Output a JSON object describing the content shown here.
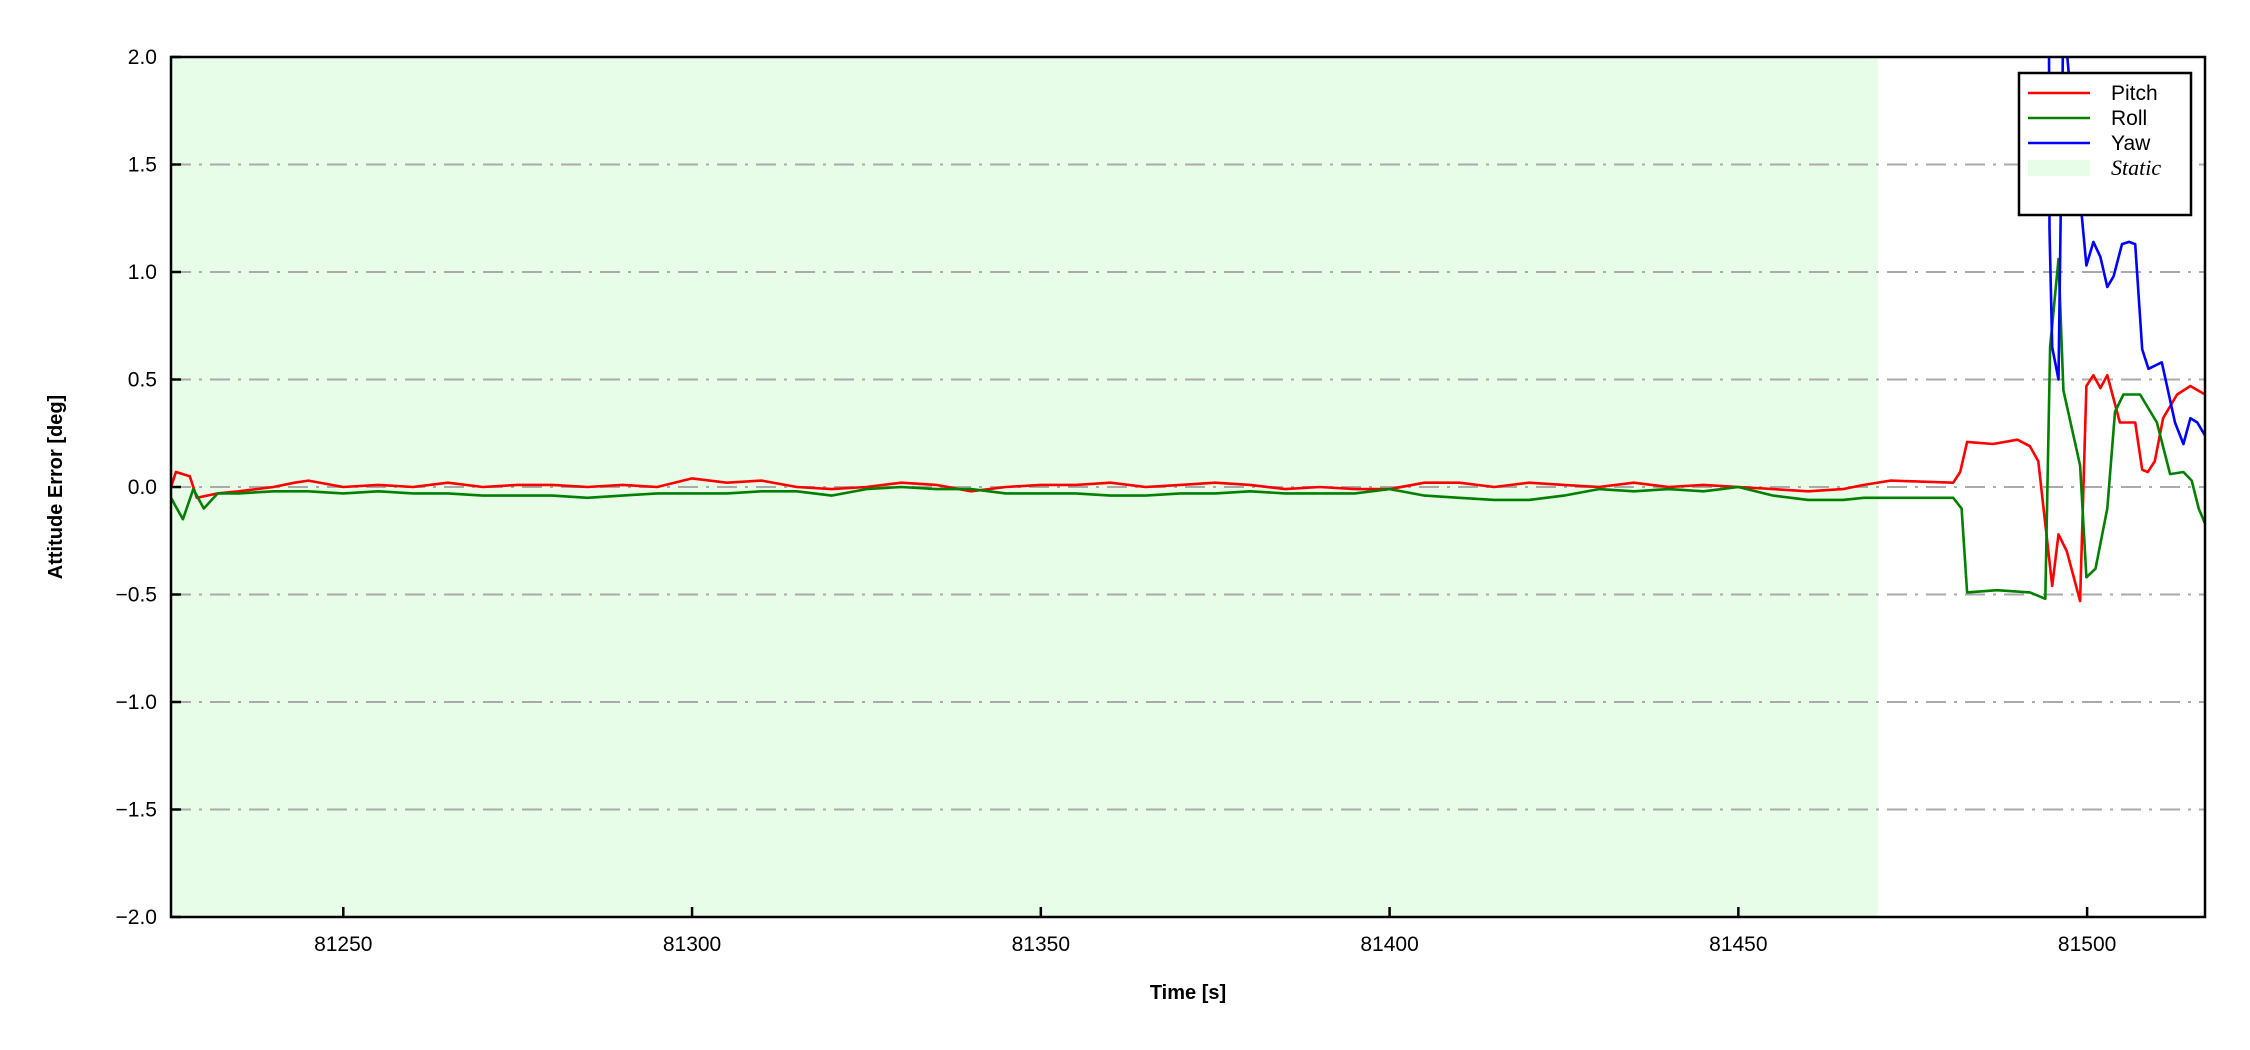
{
  "chart_data": {
    "type": "line",
    "title": "",
    "xlabel": "Time [s]",
    "ylabel": "Attitude Error [deg]",
    "xlim": [
      81225.3,
      81516.9
    ],
    "ylim": [
      -2.0,
      2.0
    ],
    "xticks": [
      81250,
      81300,
      81350,
      81400,
      81450,
      81500
    ],
    "yticks": [
      2.0,
      1.5,
      1.0,
      0.5,
      0.0,
      -0.5,
      -1.0,
      -1.5,
      -2.0
    ],
    "ytick_labels": [
      "2.0",
      "1.5",
      "1.0",
      "0.5",
      "0.0",
      "−0.5",
      "−1.0",
      "−1.5",
      "−2.0"
    ],
    "grid": "horizontal dash-dot",
    "grid_color": "#aaaaaa",
    "legend_position": "top-right",
    "shaded_regions": [
      {
        "name": "Static",
        "x_start": 81225.3,
        "x_end": 81470,
        "color": "#e8fde8"
      }
    ],
    "series": [
      {
        "name": "Pitch",
        "color": "#ff0000",
        "points": [
          [
            81225.3,
            0.0
          ],
          [
            81226,
            0.07
          ],
          [
            81228,
            0.05
          ],
          [
            81229,
            -0.05
          ],
          [
            81232,
            -0.03
          ],
          [
            81235,
            -0.02
          ],
          [
            81240,
            0.0
          ],
          [
            81243,
            0.02
          ],
          [
            81245,
            0.03
          ],
          [
            81250,
            0.0
          ],
          [
            81255,
            0.01
          ],
          [
            81260,
            0.0
          ],
          [
            81265,
            0.02
          ],
          [
            81270,
            0.0
          ],
          [
            81275,
            0.01
          ],
          [
            81280,
            0.01
          ],
          [
            81285,
            0.0
          ],
          [
            81290,
            0.01
          ],
          [
            81295,
            0.0
          ],
          [
            81300,
            0.04
          ],
          [
            81305,
            0.02
          ],
          [
            81310,
            0.03
          ],
          [
            81315,
            0.0
          ],
          [
            81320,
            -0.01
          ],
          [
            81325,
            0.0
          ],
          [
            81330,
            0.02
          ],
          [
            81335,
            0.01
          ],
          [
            81340,
            -0.02
          ],
          [
            81345,
            0.0
          ],
          [
            81350,
            0.01
          ],
          [
            81355,
            0.01
          ],
          [
            81360,
            0.02
          ],
          [
            81365,
            0.0
          ],
          [
            81370,
            0.01
          ],
          [
            81375,
            0.02
          ],
          [
            81380,
            0.01
          ],
          [
            81385,
            -0.01
          ],
          [
            81390,
            0.0
          ],
          [
            81395,
            -0.01
          ],
          [
            81400,
            -0.01
          ],
          [
            81405,
            0.02
          ],
          [
            81410,
            0.02
          ],
          [
            81415,
            0.0
          ],
          [
            81420,
            0.02
          ],
          [
            81425,
            0.01
          ],
          [
            81430,
            0.0
          ],
          [
            81435,
            0.02
          ],
          [
            81440,
            0.0
          ],
          [
            81445,
            0.01
          ],
          [
            81450,
            0.0
          ],
          [
            81455,
            -0.01
          ],
          [
            81460,
            -0.02
          ],
          [
            81465,
            -0.01
          ],
          [
            81468,
            0.01
          ],
          [
            81471.8,
            0.03
          ],
          [
            81480.8,
            0.02
          ],
          [
            81481.8,
            0.07
          ],
          [
            81482.8,
            0.21
          ],
          [
            81486.5,
            0.2
          ],
          [
            81490,
            0.22
          ],
          [
            81491.8,
            0.19
          ],
          [
            81493,
            0.12
          ],
          [
            81495,
            -0.46
          ],
          [
            81495.9,
            -0.22
          ],
          [
            81497.1,
            -0.3
          ],
          [
            81499,
            -0.53
          ],
          [
            81499.9,
            0.47
          ],
          [
            81500.9,
            0.52
          ],
          [
            81501.9,
            0.46
          ],
          [
            81502.9,
            0.52
          ],
          [
            81504.7,
            0.3
          ],
          [
            81506.9,
            0.3
          ],
          [
            81507.9,
            0.08
          ],
          [
            81508.7,
            0.07
          ],
          [
            81509.7,
            0.12
          ],
          [
            81510.9,
            0.32
          ],
          [
            81512.9,
            0.43
          ],
          [
            81514.8,
            0.47
          ],
          [
            81516.9,
            0.43
          ]
        ]
      },
      {
        "name": "Roll",
        "color": "#008000",
        "points": [
          [
            81225.3,
            -0.05
          ],
          [
            81227,
            -0.15
          ],
          [
            81228.5,
            -0.01
          ],
          [
            81230,
            -0.1
          ],
          [
            81232,
            -0.03
          ],
          [
            81235,
            -0.03
          ],
          [
            81240,
            -0.02
          ],
          [
            81245,
            -0.02
          ],
          [
            81250,
            -0.03
          ],
          [
            81255,
            -0.02
          ],
          [
            81260,
            -0.03
          ],
          [
            81265,
            -0.03
          ],
          [
            81270,
            -0.04
          ],
          [
            81275,
            -0.04
          ],
          [
            81280,
            -0.04
          ],
          [
            81285,
            -0.05
          ],
          [
            81290,
            -0.04
          ],
          [
            81295,
            -0.03
          ],
          [
            81300,
            -0.03
          ],
          [
            81305,
            -0.03
          ],
          [
            81310,
            -0.02
          ],
          [
            81315,
            -0.02
          ],
          [
            81320,
            -0.04
          ],
          [
            81325,
            -0.01
          ],
          [
            81330,
            0.0
          ],
          [
            81335,
            -0.01
          ],
          [
            81340,
            -0.01
          ],
          [
            81345,
            -0.03
          ],
          [
            81350,
            -0.03
          ],
          [
            81355,
            -0.03
          ],
          [
            81360,
            -0.04
          ],
          [
            81365,
            -0.04
          ],
          [
            81370,
            -0.03
          ],
          [
            81375,
            -0.03
          ],
          [
            81380,
            -0.02
          ],
          [
            81385,
            -0.03
          ],
          [
            81390,
            -0.03
          ],
          [
            81395,
            -0.03
          ],
          [
            81400,
            -0.01
          ],
          [
            81405,
            -0.04
          ],
          [
            81410,
            -0.05
          ],
          [
            81415,
            -0.06
          ],
          [
            81420,
            -0.06
          ],
          [
            81425,
            -0.04
          ],
          [
            81430,
            -0.01
          ],
          [
            81435,
            -0.02
          ],
          [
            81440,
            -0.01
          ],
          [
            81445,
            -0.02
          ],
          [
            81450,
            0.0
          ],
          [
            81455,
            -0.04
          ],
          [
            81460,
            -0.06
          ],
          [
            81465,
            -0.06
          ],
          [
            81468,
            -0.05
          ],
          [
            81470.8,
            -0.05
          ],
          [
            81480.8,
            -0.05
          ],
          [
            81482,
            -0.1
          ],
          [
            81482.8,
            -0.49
          ],
          [
            81487.1,
            -0.48
          ],
          [
            81491.8,
            -0.49
          ],
          [
            81494,
            -0.52
          ],
          [
            81494.7,
            0.65
          ],
          [
            81495.9,
            1.06
          ],
          [
            81496.6,
            0.45
          ],
          [
            81499,
            0.1
          ],
          [
            81499.9,
            -0.42
          ],
          [
            81501.2,
            -0.38
          ],
          [
            81502.9,
            -0.1
          ],
          [
            81504,
            0.35
          ],
          [
            81505.2,
            0.43
          ],
          [
            81507.6,
            0.43
          ],
          [
            81510,
            0.3
          ],
          [
            81511.9,
            0.06
          ],
          [
            81513.8,
            0.07
          ],
          [
            81515,
            0.03
          ],
          [
            81516,
            -0.1
          ],
          [
            81516.9,
            -0.17
          ]
        ]
      },
      {
        "name": "Yaw",
        "color": "#0000ff",
        "points": [
          [
            81494.5,
            2.4
          ],
          [
            81494.6,
            1.2
          ],
          [
            81495,
            0.65
          ],
          [
            81495.9,
            0.5
          ],
          [
            81496.6,
            2.2
          ],
          [
            81498.7,
            1.45
          ],
          [
            81499.9,
            1.03
          ],
          [
            81500.9,
            1.14
          ],
          [
            81501.9,
            1.07
          ],
          [
            81502.9,
            0.93
          ],
          [
            81503.8,
            0.98
          ],
          [
            81505,
            1.13
          ],
          [
            81506,
            1.14
          ],
          [
            81506.9,
            1.13
          ],
          [
            81507.9,
            0.64
          ],
          [
            81508.8,
            0.55
          ],
          [
            81510.7,
            0.58
          ],
          [
            81512.6,
            0.3
          ],
          [
            81513.8,
            0.2
          ],
          [
            81514.8,
            0.32
          ],
          [
            81515.8,
            0.3
          ],
          [
            81516.9,
            0.24
          ]
        ]
      }
    ],
    "legend": [
      {
        "label": "Pitch",
        "kind": "line",
        "color": "#ff0000"
      },
      {
        "label": "Roll",
        "kind": "line",
        "color": "#008000"
      },
      {
        "label": "Yaw",
        "kind": "line",
        "color": "#0000ff"
      },
      {
        "label": "Static",
        "kind": "patch",
        "color": "#e8fde8"
      }
    ]
  }
}
